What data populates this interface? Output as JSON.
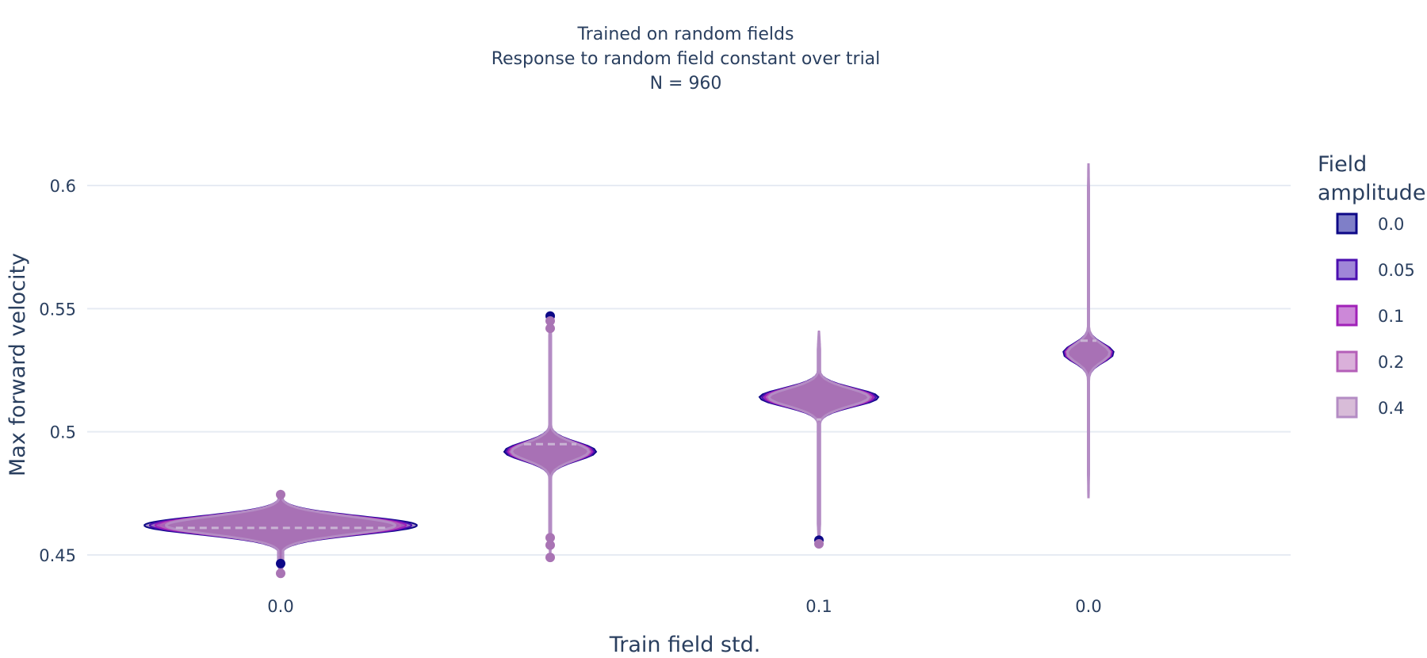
{
  "chart_data": {
    "type": "violin",
    "title_lines": [
      "Trained on random fields",
      "Response to random field constant over trial",
      "N = 960"
    ],
    "xlabel": "Train field std.",
    "ylabel": "Max forward velocity",
    "ylim": [
      0.435,
      0.625
    ],
    "yticks": [
      0.45,
      0.5,
      0.55,
      0.6
    ],
    "ytick_labels": [
      "0.45",
      "0.5",
      "0.55",
      "0.6"
    ],
    "x_tick_labels": [
      "0.0",
      "0.1",
      "0.0"
    ],
    "grid": true,
    "legend": {
      "title_lines": [
        "Field",
        "amplitude"
      ],
      "position": "right",
      "entries": [
        "0.0",
        "0.05",
        "0.1",
        "0.2",
        "0.4"
      ]
    },
    "series_colors": [
      "#0d0887",
      "#4b0fb0",
      "#a021b8",
      "#b45fb8",
      "#b48cc4"
    ],
    "groups": [
      {
        "median": 0.461,
        "min": 0.443,
        "max": 0.475,
        "mode": 0.462,
        "spread": 0.055,
        "outliers": [
          0.4465,
          0.4425,
          0.4745
        ]
      },
      {
        "median": 0.495,
        "min": 0.449,
        "max": 0.547,
        "mode": 0.492,
        "spread": 0.033,
        "outliers": [
          0.547,
          0.545,
          0.542,
          0.457,
          0.454,
          0.449
        ]
      },
      {
        "median": 0.505,
        "min": 0.455,
        "max": 0.541,
        "mode": 0.514,
        "spread": 0.025,
        "outliers": [
          0.456,
          0.4545
        ]
      },
      {
        "median": 0.537,
        "min": 0.473,
        "max": 0.609,
        "mode": 0.532,
        "spread": 0.018,
        "outliers": []
      }
    ]
  }
}
